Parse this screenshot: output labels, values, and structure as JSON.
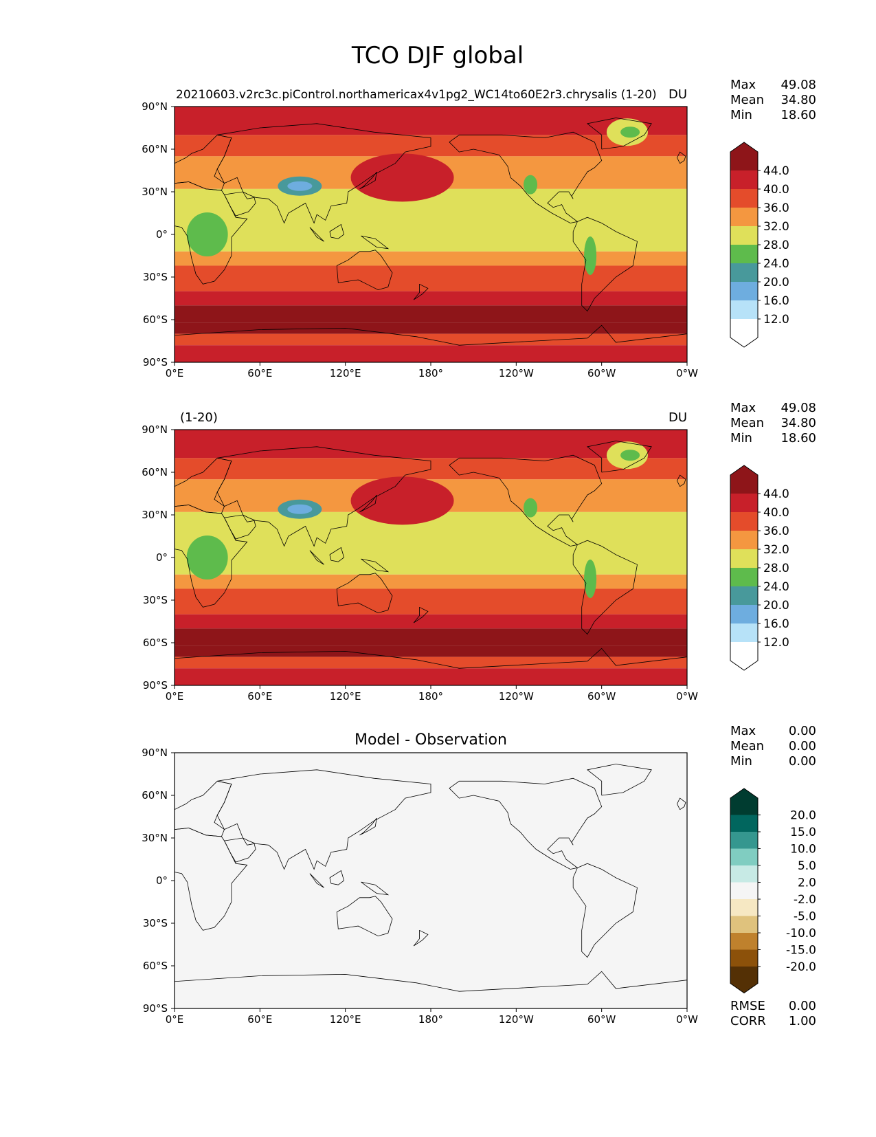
{
  "figure": {
    "title": "TCO DJF global"
  },
  "lon_ticks": [
    "0°E",
    "60°E",
    "120°E",
    "180°",
    "120°W",
    "60°W",
    "0°W"
  ],
  "lat_ticks": [
    "90°N",
    "60°N",
    "30°N",
    "0°",
    "30°S",
    "60°S",
    "90°S"
  ],
  "panels": [
    {
      "title_left": "20210603.v2rc3c.piControl.northamericax4v1pg2_WC14to60E2r3.chrysalis (1-20)",
      "title_center": "",
      "title_right": "DU",
      "stats": [
        {
          "label": "Max",
          "value": "49.08"
        },
        {
          "label": "Mean",
          "value": "34.80"
        },
        {
          "label": "Min",
          "value": "18.60"
        }
      ],
      "colorbar": {
        "ticks": [
          "44.0",
          "40.0",
          "36.0",
          "32.0",
          "28.0",
          "24.0",
          "20.0",
          "16.0",
          "12.0"
        ],
        "top_extension_color": "#8e1519",
        "colors": [
          "#c8202a",
          "#e44c2b",
          "#f49740",
          "#dfe05a",
          "#5ebb4c",
          "#48999b",
          "#6eaddf",
          "#b7e2f8",
          "#ffffff"
        ],
        "bottom_extension_color": "#ffffff"
      }
    },
    {
      "title_left": "(1-20)",
      "title_center": "",
      "title_right": "DU",
      "stats": [
        {
          "label": "Max",
          "value": "49.08"
        },
        {
          "label": "Mean",
          "value": "34.80"
        },
        {
          "label": "Min",
          "value": "18.60"
        }
      ],
      "colorbar": {
        "ticks": [
          "44.0",
          "40.0",
          "36.0",
          "32.0",
          "28.0",
          "24.0",
          "20.0",
          "16.0",
          "12.0"
        ],
        "top_extension_color": "#8e1519",
        "colors": [
          "#c8202a",
          "#e44c2b",
          "#f49740",
          "#dfe05a",
          "#5ebb4c",
          "#48999b",
          "#6eaddf",
          "#b7e2f8",
          "#ffffff"
        ],
        "bottom_extension_color": "#ffffff"
      }
    },
    {
      "title_left": "",
      "title_center": "Model - Observation",
      "title_right": "",
      "stats": [
        {
          "label": "Max",
          "value": "0.00"
        },
        {
          "label": "Mean",
          "value": "0.00"
        },
        {
          "label": "Min",
          "value": "0.00"
        }
      ],
      "bottom_stats": [
        {
          "label": "RMSE",
          "value": "0.00"
        },
        {
          "label": "CORR",
          "value": "1.00"
        }
      ],
      "colorbar": {
        "ticks": [
          "20.0",
          "15.0",
          "10.0",
          "5.0",
          "2.0",
          "-2.0",
          "-5.0",
          "-10.0",
          "-15.0",
          "-20.0"
        ],
        "top_extension_color": "#003c30",
        "colors": [
          "#01665e",
          "#35978f",
          "#80cdc1",
          "#c7eae5",
          "#f5f5f5",
          "#f6e8c3",
          "#dfc27d",
          "#bf812d",
          "#8c510a",
          "#543005"
        ],
        "bottom_extension_color": "#543005"
      }
    }
  ]
}
